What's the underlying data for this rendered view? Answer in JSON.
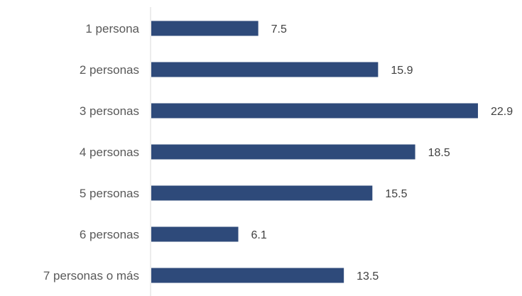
{
  "chart_data": {
    "type": "bar",
    "orientation": "horizontal",
    "categories": [
      "1 persona",
      "2 personas",
      "3 personas",
      "4 personas",
      "5 personas",
      "6 personas",
      "7 personas o más"
    ],
    "values": [
      7.5,
      15.9,
      22.9,
      18.5,
      15.5,
      6.1,
      13.5
    ],
    "data_labels": [
      "7.5",
      "15.9",
      "22.9",
      "18.5",
      "15.5",
      "6.1",
      "13.5"
    ],
    "xlim": [
      0,
      23.3
    ],
    "grid": false,
    "legend": "none",
    "bar_color": "#2e4a7a",
    "axis_color": "#d9d9d9",
    "text_color": "#595959"
  }
}
